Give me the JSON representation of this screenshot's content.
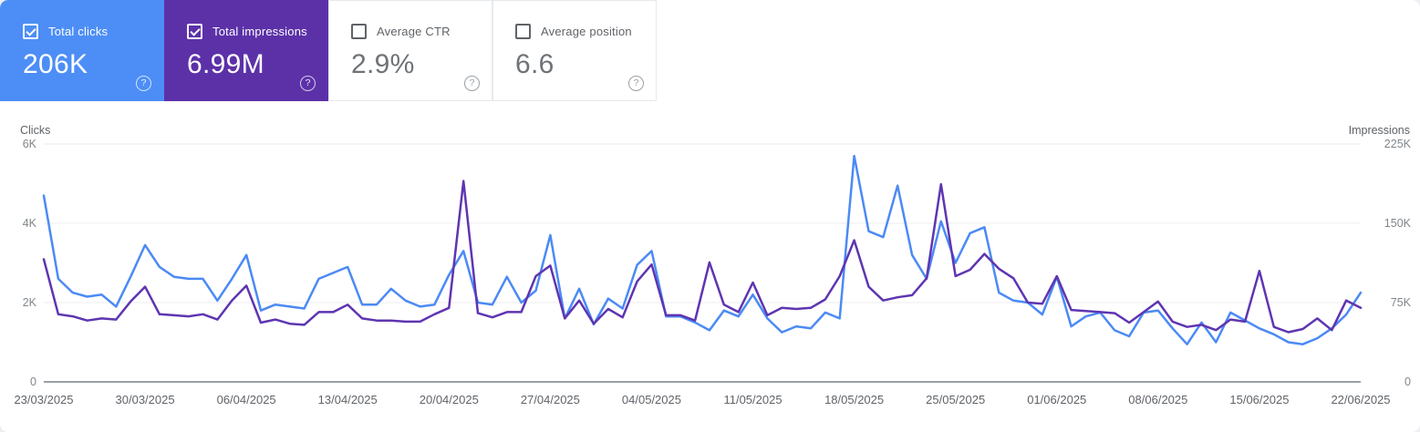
{
  "cards": [
    {
      "label": "Total clicks",
      "value": "206K",
      "checked": true,
      "color": "#4d8ef6"
    },
    {
      "label": "Total impressions",
      "value": "6.99M",
      "checked": true,
      "color": "#5c31a8"
    },
    {
      "label": "Average CTR",
      "value": "2.9%",
      "checked": false
    },
    {
      "label": "Average position",
      "value": "6.6",
      "checked": false
    }
  ],
  "chart_data": {
    "type": "line",
    "grid": "horizontal",
    "legend_position": "none",
    "x_tick_labels": [
      "23/03/2025",
      "30/03/2025",
      "06/04/2025",
      "13/04/2025",
      "20/04/2025",
      "27/04/2025",
      "04/05/2025",
      "11/05/2025",
      "18/05/2025",
      "25/05/2025",
      "01/06/2025",
      "08/06/2025",
      "15/06/2025",
      "22/06/2025"
    ],
    "x_points_per_series": 92,
    "x_days_per_tick": 7,
    "left_axis": {
      "title": "Clicks",
      "range": [
        0,
        6000
      ],
      "ticks": [
        {
          "label": "6K",
          "value": 6000
        },
        {
          "label": "4K",
          "value": 4000
        },
        {
          "label": "2K",
          "value": 2000
        },
        {
          "label": "0",
          "value": 0
        }
      ]
    },
    "right_axis": {
      "title": "Impressions",
      "range": [
        0,
        225000
      ],
      "ticks": [
        {
          "label": "225K",
          "value": 225000
        },
        {
          "label": "150K",
          "value": 150000
        },
        {
          "label": "75K",
          "value": 75000
        },
        {
          "label": "0",
          "value": 0
        }
      ]
    },
    "series": [
      {
        "name": "Total clicks",
        "axis": "left",
        "color": "#4b8af5",
        "values": [
          4700,
          2600,
          2250,
          2150,
          2200,
          1900,
          2650,
          3450,
          2900,
          2650,
          2600,
          2600,
          2050,
          2600,
          3200,
          1800,
          1950,
          1900,
          1850,
          2600,
          2750,
          2900,
          1950,
          1950,
          2350,
          2050,
          1900,
          1950,
          2700,
          3300,
          2000,
          1950,
          2650,
          2000,
          2300,
          3700,
          1600,
          2350,
          1450,
          2100,
          1850,
          2950,
          3300,
          1650,
          1650,
          1500,
          1300,
          1800,
          1650,
          2200,
          1600,
          1250,
          1400,
          1350,
          1750,
          1600,
          5700,
          3800,
          3650,
          4950,
          3200,
          2600,
          4050,
          3000,
          3750,
          3900,
          2250,
          2050,
          2000,
          1700,
          2650,
          1400,
          1650,
          1750,
          1300,
          1150,
          1750,
          1800,
          1350,
          950,
          1500,
          1000,
          1750,
          1550,
          1350,
          1200,
          1000,
          950,
          1100,
          1350,
          1700,
          2250
        ]
      },
      {
        "name": "Total impressions",
        "axis": "right",
        "color": "#5e35b1",
        "values": [
          116000,
          64000,
          62000,
          58000,
          60000,
          59000,
          76000,
          90000,
          64000,
          63000,
          62000,
          64000,
          59000,
          77000,
          91000,
          56000,
          59000,
          55000,
          54000,
          66000,
          66000,
          73000,
          60000,
          58000,
          58000,
          57000,
          57000,
          64000,
          70000,
          190000,
          65000,
          61000,
          66000,
          66000,
          100000,
          110000,
          60000,
          77000,
          55000,
          69000,
          61000,
          95000,
          111000,
          63000,
          63000,
          58000,
          113000,
          73000,
          66000,
          94000,
          63000,
          70000,
          69000,
          70000,
          78000,
          100000,
          134000,
          90000,
          77000,
          80000,
          82000,
          98000,
          187000,
          100000,
          106000,
          121000,
          107000,
          98000,
          75000,
          74000,
          100000,
          68000,
          67000,
          66000,
          65000,
          56000,
          66000,
          76000,
          57000,
          52000,
          54000,
          49000,
          59000,
          57000,
          105000,
          52000,
          47000,
          50000,
          60000,
          49000,
          77000,
          70000
        ]
      }
    ],
    "colors": {
      "grid": "#ededef",
      "axis_line": "#9aa0a6",
      "y_tick_text": "#80868b",
      "x_tick_text": "#5f6368",
      "axis_title_text": "#5f6368"
    }
  }
}
